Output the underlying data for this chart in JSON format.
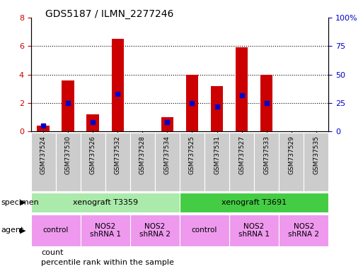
{
  "title": "GDS5187 / ILMN_2277246",
  "samples": [
    "GSM737524",
    "GSM737530",
    "GSM737526",
    "GSM737532",
    "GSM737528",
    "GSM737534",
    "GSM737525",
    "GSM737531",
    "GSM737527",
    "GSM737533",
    "GSM737529",
    "GSM737535"
  ],
  "counts": [
    0.4,
    3.6,
    1.2,
    6.5,
    0.0,
    1.0,
    4.0,
    3.2,
    5.9,
    4.0,
    0.0,
    0.0
  ],
  "percentiles": [
    5.0,
    25.0,
    8.0,
    33.0,
    0.0,
    8.0,
    25.0,
    22.0,
    32.0,
    25.0,
    0.0,
    0.0
  ],
  "ylim_left": [
    0,
    8
  ],
  "ylim_right": [
    0,
    100
  ],
  "yticks_left": [
    0,
    2,
    4,
    6,
    8
  ],
  "yticks_right": [
    0,
    25,
    50,
    75,
    100
  ],
  "ytick_labels_right": [
    "0",
    "25",
    "50",
    "75",
    "100%"
  ],
  "bar_color": "#cc0000",
  "dot_color": "#0000cc",
  "grid_color": "#000000",
  "specimen_groups": [
    {
      "label": "xenograft T3359",
      "start": 0,
      "end": 5,
      "color": "#aaeaaa"
    },
    {
      "label": "xenograft T3691",
      "start": 6,
      "end": 11,
      "color": "#44cc44"
    }
  ],
  "agent_groups": [
    {
      "label": "control",
      "start": 0,
      "end": 1,
      "color": "#ee99ee"
    },
    {
      "label": "NOS2\nshRNA 1",
      "start": 2,
      "end": 3,
      "color": "#ee99ee"
    },
    {
      "label": "NOS2\nshRNA 2",
      "start": 4,
      "end": 5,
      "color": "#ee99ee"
    },
    {
      "label": "control",
      "start": 6,
      "end": 7,
      "color": "#ee99ee"
    },
    {
      "label": "NOS2\nshRNA 1",
      "start": 8,
      "end": 9,
      "color": "#ee99ee"
    },
    {
      "label": "NOS2\nshRNA 2",
      "start": 10,
      "end": 11,
      "color": "#ee99ee"
    }
  ],
  "legend_count_label": "count",
  "legend_pct_label": "percentile rank within the sample",
  "specimen_label": "specimen",
  "agent_label": "agent",
  "tick_label_color_left": "#cc0000",
  "tick_label_color_right": "#0000cc",
  "xtick_bg_color": "#cccccc",
  "bar_width": 0.5
}
